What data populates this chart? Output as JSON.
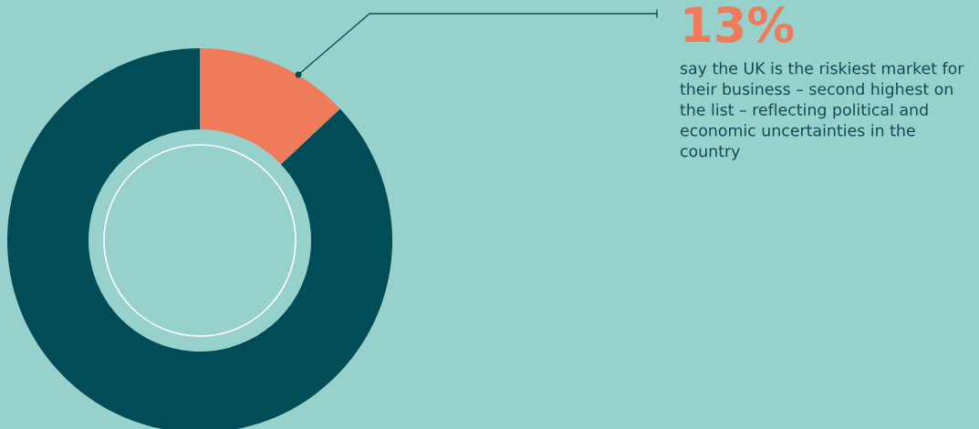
{
  "chart_data": {
    "type": "donut",
    "categories": [
      null,
      null
    ],
    "values": [
      13,
      87
    ],
    "colors": [
      "#ef7b5a",
      "#004d58"
    ],
    "value_labels": [
      "13%",
      null
    ],
    "annotations": [
      "say the UK is the riskiest market for their business – second highest on the list – reflecting political and economic uncertainties in the country"
    ]
  }
}
